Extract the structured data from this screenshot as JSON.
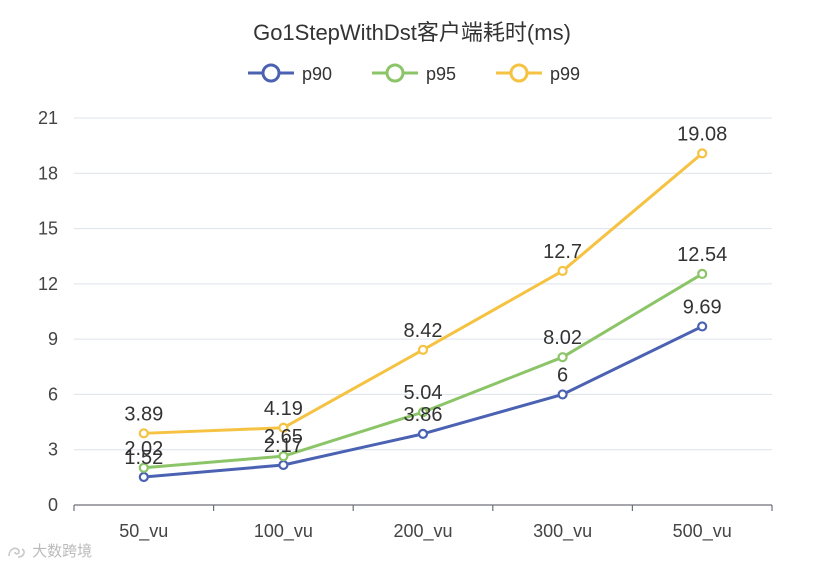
{
  "chart_data": {
    "type": "line",
    "title": "Go1StepWithDst客户端耗时(ms)",
    "categories": [
      "50_vu",
      "100_vu",
      "200_vu",
      "300_vu",
      "500_vu"
    ],
    "ylim": [
      0,
      21
    ],
    "yticks": [
      0,
      3,
      6,
      9,
      12,
      15,
      18,
      21
    ],
    "grid": true,
    "legend_position": "top-center",
    "series": [
      {
        "name": "p90",
        "color": "#4b62b3",
        "values": [
          1.52,
          2.17,
          3.86,
          6,
          9.69
        ]
      },
      {
        "name": "p95",
        "color": "#8cc567",
        "values": [
          2.02,
          2.65,
          5.04,
          8.02,
          12.54
        ]
      },
      {
        "name": "p99",
        "color": "#f5c242",
        "values": [
          3.89,
          4.19,
          8.42,
          12.7,
          19.08
        ]
      }
    ]
  },
  "watermark": {
    "text": "大数跨境",
    "icon": "swirl-logo-icon"
  }
}
